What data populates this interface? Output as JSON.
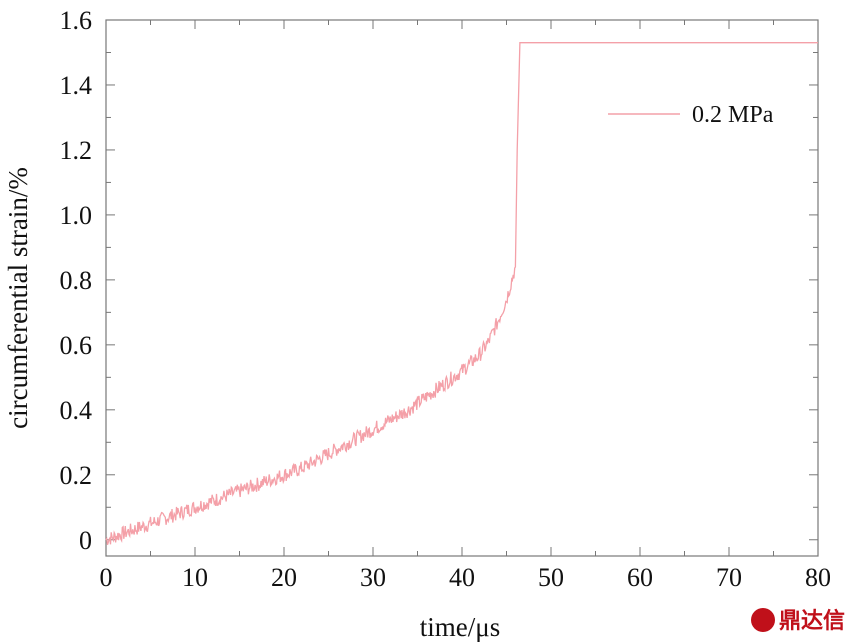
{
  "chart_data": {
    "type": "line",
    "title": "",
    "xlabel": "time/μs",
    "ylabel": "circumferential strain/%",
    "xlim": [
      0,
      80
    ],
    "ylim": [
      -0.05,
      1.6
    ],
    "x_ticks": [
      "0",
      "10",
      "20",
      "30",
      "40",
      "50",
      "60",
      "70",
      "80"
    ],
    "y_ticks": [
      "0",
      "0.2",
      "0.4",
      "0.6",
      "0.8",
      "1.0",
      "1.2",
      "1.4",
      "1.6"
    ],
    "grid": false,
    "legend_position": "top-right",
    "series": [
      {
        "name": "0.2 MPa",
        "color": "#f4a0a8",
        "x": [
          0,
          2,
          4,
          6,
          8,
          10,
          12,
          14,
          16,
          18,
          20,
          22,
          24,
          26,
          28,
          30,
          32,
          34,
          36,
          38,
          40,
          42,
          43,
          44,
          45,
          45.5,
          46,
          46.2,
          46.5,
          80
        ],
        "y": [
          0.0,
          0.02,
          0.04,
          0.06,
          0.08,
          0.1,
          0.12,
          0.14,
          0.16,
          0.18,
          0.2,
          0.22,
          0.25,
          0.28,
          0.31,
          0.34,
          0.37,
          0.4,
          0.44,
          0.48,
          0.52,
          0.57,
          0.61,
          0.67,
          0.74,
          0.79,
          0.84,
          1.2,
          1.53,
          1.53
        ]
      }
    ]
  },
  "watermark": {
    "text": "鼎达信",
    "color": "#c0101a"
  }
}
